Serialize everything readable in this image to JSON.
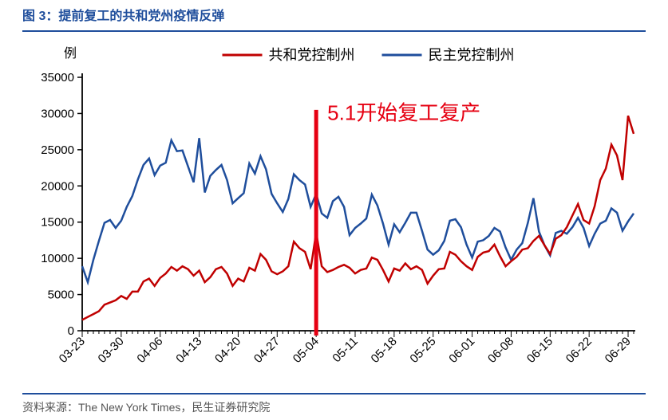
{
  "header": {
    "title": "图 3：提前复工的共和党州疫情反弹"
  },
  "footer": {
    "source": "资料来源：The New York Times，民生证券研究院"
  },
  "chart": {
    "type": "line",
    "y_unit_label": "例",
    "annotation": {
      "text": "5.1开始复工复产",
      "marker_x": "05-04",
      "color": "#e60012"
    },
    "legend": {
      "series1": "共和党控制州",
      "series2": "民主党控制州",
      "color1": "#c00000",
      "color2": "#1f4e9c"
    },
    "ylim": [
      0,
      35000
    ],
    "ytick_step": 5000,
    "yticks": [
      0,
      5000,
      10000,
      15000,
      20000,
      25000,
      30000,
      35000
    ],
    "x_major_ticks": [
      "03-23",
      "03-30",
      "04-06",
      "04-13",
      "04-20",
      "04-27",
      "05-04",
      "05-11",
      "05-18",
      "05-25",
      "06-01",
      "06-08",
      "06-15",
      "06-22",
      "06-29"
    ],
    "dates": [
      "03-23",
      "03-24",
      "03-25",
      "03-26",
      "03-27",
      "03-28",
      "03-29",
      "03-30",
      "03-31",
      "04-01",
      "04-02",
      "04-03",
      "04-04",
      "04-05",
      "04-06",
      "04-07",
      "04-08",
      "04-09",
      "04-10",
      "04-11",
      "04-12",
      "04-13",
      "04-14",
      "04-15",
      "04-16",
      "04-17",
      "04-18",
      "04-19",
      "04-20",
      "04-21",
      "04-22",
      "04-23",
      "04-24",
      "04-25",
      "04-26",
      "04-27",
      "04-28",
      "04-29",
      "04-30",
      "05-01",
      "05-02",
      "05-03",
      "05-04",
      "05-05",
      "05-06",
      "05-07",
      "05-08",
      "05-09",
      "05-10",
      "05-11",
      "05-12",
      "05-13",
      "05-14",
      "05-15",
      "05-16",
      "05-17",
      "05-18",
      "05-19",
      "05-20",
      "05-21",
      "05-22",
      "05-23",
      "05-24",
      "05-25",
      "05-26",
      "05-27",
      "05-28",
      "05-29",
      "05-30",
      "05-31",
      "06-01",
      "06-02",
      "06-03",
      "06-04",
      "06-05",
      "06-06",
      "06-07",
      "06-08",
      "06-09",
      "06-10",
      "06-11",
      "06-12",
      "06-13",
      "06-14",
      "06-15",
      "06-16",
      "06-17",
      "06-18",
      "06-19",
      "06-20",
      "06-21",
      "06-22",
      "06-23",
      "06-24",
      "06-25",
      "06-26",
      "06-27",
      "06-28",
      "06-29",
      "06-30"
    ],
    "series1_values": [
      1500,
      1900,
      2300,
      2700,
      3600,
      3900,
      4200,
      4800,
      4400,
      5400,
      5400,
      6800,
      7200,
      6200,
      7300,
      7900,
      8800,
      8300,
      8900,
      8500,
      7600,
      8300,
      6700,
      7400,
      8500,
      8800,
      7900,
      6200,
      7200,
      6800,
      8700,
      8300,
      10600,
      9800,
      8200,
      7800,
      8200,
      8900,
      12300,
      11400,
      10900,
      8500,
      13600,
      8900,
      8100,
      8400,
      8800,
      9100,
      8700,
      7900,
      8400,
      8600,
      10100,
      9800,
      8400,
      6800,
      8600,
      8300,
      9300,
      8500,
      8900,
      8400,
      6500,
      7600,
      8500,
      8600,
      10900,
      10500,
      9600,
      8900,
      8400,
      10200,
      10800,
      11000,
      11900,
      10300,
      8900,
      9600,
      10200,
      11200,
      11400,
      12400,
      13100,
      11800,
      10600,
      12700,
      13200,
      14300,
      15900,
      17500,
      15300,
      14800,
      17200,
      20800,
      22400,
      25700,
      24200,
      20800,
      29700,
      27200
    ],
    "series2_values": [
      8900,
      6700,
      9800,
      12400,
      14900,
      15300,
      14200,
      15200,
      17100,
      18600,
      20900,
      22900,
      23800,
      21500,
      22800,
      23200,
      26300,
      24800,
      24900,
      22700,
      20500,
      26600,
      19100,
      21400,
      22200,
      22900,
      20800,
      17600,
      18300,
      19000,
      23100,
      21700,
      24100,
      22300,
      18900,
      17600,
      16400,
      18200,
      21600,
      20800,
      20200,
      17100,
      18900,
      16200,
      15600,
      17900,
      18500,
      17100,
      13200,
      14200,
      14800,
      15500,
      18800,
      17300,
      14800,
      11900,
      14700,
      13600,
      14900,
      16300,
      16300,
      13800,
      11200,
      10500,
      11100,
      12400,
      15200,
      15400,
      14300,
      11900,
      10100,
      12300,
      12500,
      13100,
      14200,
      13700,
      11500,
      9800,
      11200,
      12100,
      14900,
      18300,
      13700,
      11800,
      10400,
      13500,
      13800,
      13400,
      14300,
      15600,
      14200,
      11700,
      13400,
      14800,
      15200,
      16900,
      16300,
      13800,
      15100,
      16200
    ],
    "colors": {
      "axis": "#000000",
      "background": "#ffffff",
      "annotation_line": "#e60012"
    },
    "line_width": 2.5,
    "tick_fontsize": 15,
    "legend_fontsize": 18,
    "annotation_fontsize": 26
  }
}
